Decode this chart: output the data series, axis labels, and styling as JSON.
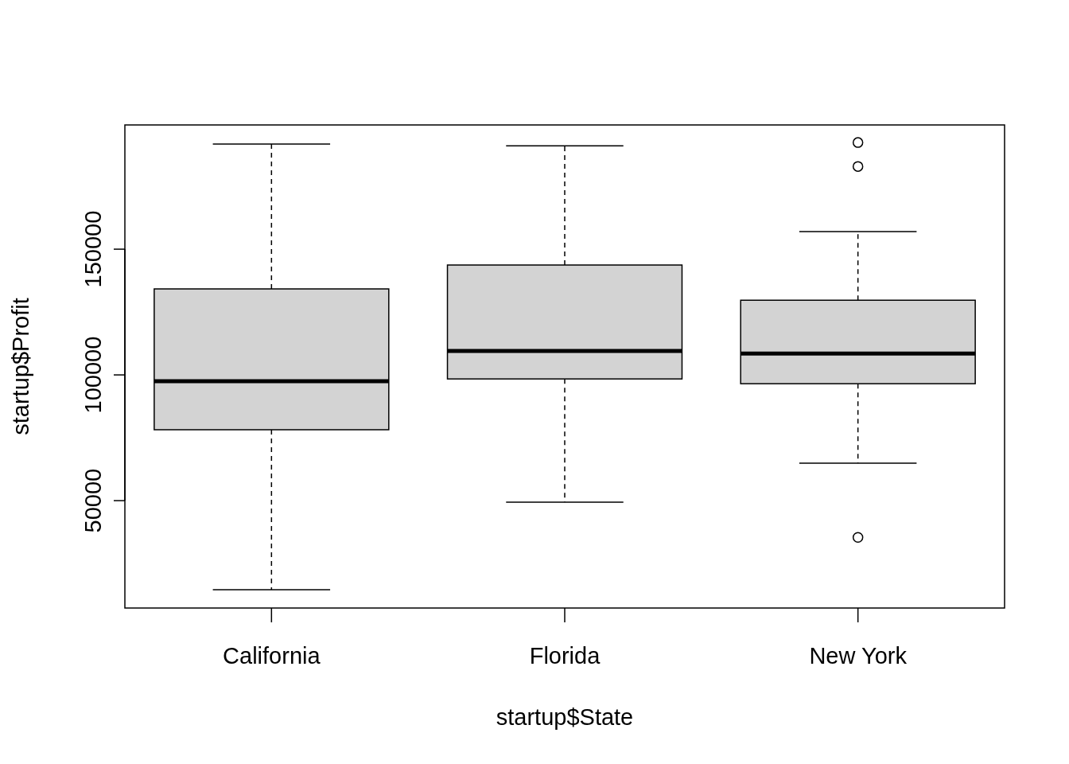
{
  "chart_data": {
    "type": "box",
    "xlabel": "startup$State",
    "ylabel": "startup$Profit",
    "categories": [
      "California",
      "Florida",
      "New York"
    ],
    "color": "#d3d3d3",
    "ylim": [
      7300,
      199400
    ],
    "yticks": [
      50000,
      100000,
      150000
    ],
    "grid": false,
    "boxes": [
      {
        "low": 14600,
        "q1": 78200,
        "median": 97500,
        "q3": 134200,
        "high": 191800
      },
      {
        "low": 49400,
        "q1": 98400,
        "median": 109500,
        "q3": 143700,
        "high": 191100
      },
      {
        "low": 64900,
        "q1": 96500,
        "median": 108500,
        "q3": 129700,
        "high": 157000,
        "outliers": [
          192400,
          182900,
          35400
        ]
      }
    ]
  }
}
